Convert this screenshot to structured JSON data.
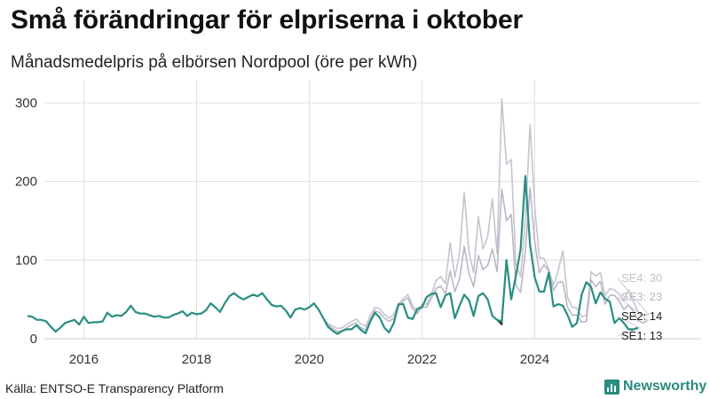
{
  "title": "Små förändringar för elpriserna i oktober",
  "subtitle": "Månadsmedelpris på elbörsen Nordpool (öre per kWh)",
  "source": "Källa: ENTSO-E Transparency Platform",
  "brand": "Newsworthy",
  "colors": {
    "SE1": "#1a1a1a",
    "SE2": "#2a8f82",
    "SE3": "#b9b7c6",
    "SE4": "#c6c4cf",
    "grid": "#dedede",
    "accent": "#2a8c7e"
  },
  "chart_data": {
    "type": "line",
    "title": "Små förändringar för elpriserna i oktober",
    "subtitle": "Månadsmedelpris på elbörsen Nordpool (öre per kWh)",
    "xlabel": "",
    "ylabel": "öre per kWh",
    "xlim": [
      2015.0,
      2027.0
    ],
    "ylim": [
      0,
      310
    ],
    "yticks": [
      0,
      100,
      200,
      300
    ],
    "xticks": [
      2016,
      2018,
      2020,
      2022,
      2024
    ],
    "series": [
      {
        "name": "SE4",
        "label": "SE4: 30",
        "start": 2015.0,
        "values": [
          29,
          28,
          24,
          24,
          22,
          15,
          9,
          14,
          20,
          22,
          24,
          18,
          28,
          20,
          21,
          21,
          22,
          33,
          28,
          30,
          29,
          34,
          42,
          34,
          32,
          32,
          30,
          28,
          29,
          27,
          27,
          30,
          32,
          35,
          29,
          33,
          31,
          32,
          36,
          45,
          40,
          34,
          45,
          54,
          58,
          53,
          50,
          53,
          56,
          54,
          58,
          50,
          43,
          41,
          42,
          36,
          27,
          37,
          39,
          37,
          40,
          45,
          37,
          26,
          19,
          16,
          13,
          14,
          18,
          22,
          25,
          19,
          16,
          29,
          40,
          38,
          31,
          26,
          31,
          44,
          51,
          56,
          42,
          35,
          44,
          44,
          56,
          74,
          79,
          70,
          122,
          78,
          109,
          186,
          110,
          84,
          155,
          114,
          130,
          178,
          108,
          305,
          222,
          228,
          95,
          79,
          149,
          272,
          169,
          103,
          102,
          88,
          68,
          86,
          112,
          52,
          40,
          39,
          28,
          30,
          85,
          80,
          84,
          55,
          64,
          62,
          57,
          49,
          62,
          48,
          34,
          30,
          30
        ]
      },
      {
        "name": "SE3",
        "label": "SE3: 23",
        "start": 2015.0,
        "values": [
          29,
          28,
          24,
          24,
          22,
          15,
          9,
          14,
          20,
          22,
          24,
          18,
          28,
          20,
          21,
          21,
          22,
          33,
          28,
          30,
          29,
          34,
          42,
          34,
          32,
          32,
          30,
          28,
          29,
          27,
          27,
          30,
          32,
          35,
          29,
          33,
          31,
          32,
          36,
          45,
          40,
          34,
          45,
          54,
          58,
          53,
          50,
          53,
          56,
          54,
          58,
          50,
          43,
          41,
          42,
          36,
          27,
          37,
          39,
          37,
          40,
          45,
          37,
          26,
          17,
          13,
          9,
          10,
          14,
          18,
          20,
          14,
          11,
          24,
          36,
          33,
          26,
          22,
          26,
          41,
          48,
          52,
          38,
          32,
          40,
          40,
          51,
          64,
          67,
          57,
          86,
          60,
          76,
          117,
          83,
          66,
          106,
          88,
          93,
          114,
          85,
          190,
          150,
          158,
          68,
          59,
          110,
          192,
          124,
          84,
          94,
          86,
          61,
          72,
          72,
          40,
          30,
          30,
          21,
          22,
          75,
          66,
          73,
          44,
          55,
          55,
          48,
          37,
          43,
          35,
          23,
          20,
          23
        ]
      },
      {
        "name": "SE2",
        "label": "SE2: 14",
        "start": 2015.0,
        "values": [
          29,
          28,
          24,
          24,
          22,
          15,
          9,
          14,
          20,
          22,
          24,
          18,
          28,
          20,
          21,
          21,
          22,
          33,
          28,
          30,
          29,
          34,
          42,
          34,
          32,
          32,
          30,
          28,
          29,
          27,
          27,
          30,
          32,
          35,
          29,
          33,
          31,
          32,
          36,
          45,
          40,
          34,
          45,
          54,
          58,
          53,
          50,
          53,
          56,
          54,
          58,
          50,
          43,
          41,
          42,
          36,
          27,
          37,
          39,
          37,
          40,
          45,
          37,
          26,
          15,
          10,
          6,
          10,
          12,
          12,
          17,
          11,
          7,
          22,
          33,
          27,
          14,
          8,
          20,
          44,
          44,
          27,
          25,
          38,
          40,
          53,
          57,
          58,
          40,
          55,
          58,
          26,
          42,
          56,
          49,
          29,
          54,
          58,
          50,
          29,
          24,
          22,
          100,
          50,
          80,
          114,
          207,
          120,
          78,
          60,
          60,
          84,
          41,
          44,
          42,
          30,
          15,
          20,
          56,
          72,
          66,
          45,
          59,
          51,
          47,
          20,
          26,
          20,
          12,
          12,
          14
        ]
      },
      {
        "name": "SE1",
        "label": "SE1: 13",
        "start": 2015.0,
        "values": [
          29,
          28,
          24,
          24,
          22,
          15,
          9,
          14,
          20,
          22,
          24,
          18,
          28,
          20,
          21,
          21,
          22,
          33,
          28,
          30,
          29,
          34,
          42,
          34,
          32,
          32,
          30,
          28,
          29,
          27,
          27,
          30,
          32,
          35,
          29,
          33,
          31,
          32,
          36,
          45,
          40,
          34,
          45,
          54,
          58,
          53,
          50,
          53,
          56,
          54,
          58,
          50,
          43,
          41,
          42,
          36,
          27,
          37,
          39,
          37,
          40,
          45,
          37,
          26,
          15,
          10,
          6,
          10,
          12,
          12,
          17,
          11,
          7,
          22,
          33,
          27,
          14,
          8,
          20,
          44,
          44,
          27,
          25,
          38,
          40,
          53,
          57,
          58,
          40,
          55,
          58,
          26,
          42,
          56,
          49,
          29,
          54,
          58,
          50,
          29,
          24,
          18,
          100,
          50,
          80,
          114,
          207,
          120,
          78,
          60,
          60,
          84,
          41,
          44,
          42,
          30,
          15,
          20,
          56,
          72,
          66,
          45,
          59,
          51,
          47,
          20,
          26,
          20,
          12,
          11,
          13
        ]
      }
    ]
  }
}
